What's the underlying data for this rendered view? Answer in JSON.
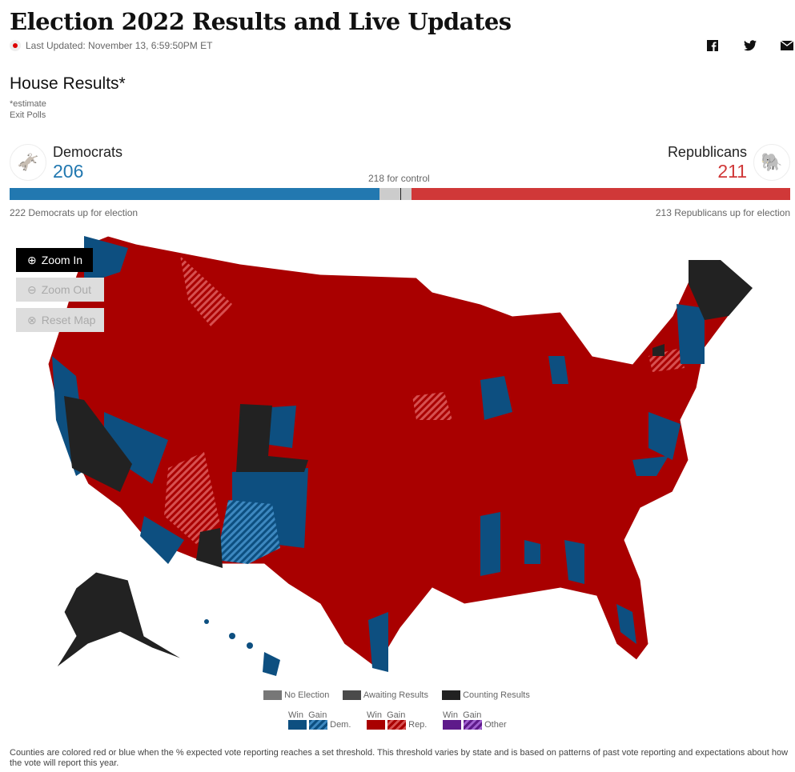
{
  "header": {
    "title": "Election 2022 Results and Live Updates",
    "last_updated": "Last Updated: November 13, 6:59:50PM ET"
  },
  "share": [
    {
      "icon": "facebook-icon"
    },
    {
      "icon": "twitter-icon"
    },
    {
      "icon": "email-icon"
    }
  ],
  "section": {
    "title": "House Results*",
    "note1": "*estimate",
    "note2": "Exit Polls"
  },
  "democrats": {
    "label": "Democrats",
    "count": "206",
    "up": "222 Democrats up for election",
    "color": "#2278b0",
    "seats": 206
  },
  "republicans": {
    "label": "Republicans",
    "count": "211",
    "up": "213 Republicans up for election",
    "color": "#d03838",
    "seats": 211
  },
  "control": "218 for control",
  "map_controls": {
    "zoom_in": "Zoom In",
    "zoom_out": "Zoom Out",
    "reset": "Reset Map"
  },
  "legend": {
    "no_election": "No Election",
    "awaiting": "Awaiting Results",
    "counting": "Counting Results",
    "win": "Win",
    "gain": "Gain",
    "dem": "Dem.",
    "rep": "Rep.",
    "other": "Other",
    "colors": {
      "dem": "#0d4f80",
      "rep": "#a90000",
      "other": "#5e1a8a",
      "no_election": "#777777",
      "awaiting": "#4a4a4a",
      "counting": "#222222"
    }
  },
  "footnote": "Counties are colored red or blue when the % expected vote reporting reaches a set threshold. This threshold varies by state and is based on patterns of past vote reporting and expectations about how the vote will report this year."
}
